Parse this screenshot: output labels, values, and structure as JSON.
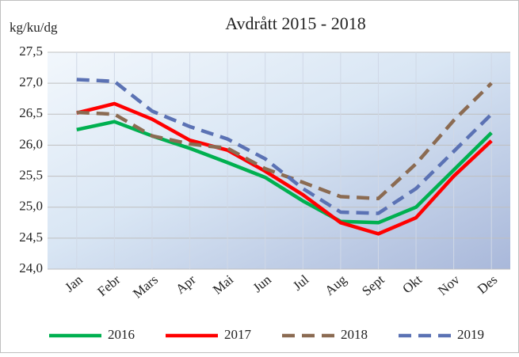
{
  "chart_data": {
    "type": "line",
    "title": "Avdrått 2015 - 2018",
    "y_label": "kg/ku/dg",
    "categories": [
      "Jan",
      "Febr",
      "Mars",
      "Apr",
      "Mai",
      "Jun",
      "Jul",
      "Aug",
      "Sept",
      "Okt",
      "Nov",
      "Des"
    ],
    "series": [
      {
        "name": "2016",
        "color": "#00b050",
        "dashed": false,
        "values": [
          26.25,
          26.38,
          26.15,
          25.95,
          25.72,
          25.48,
          25.1,
          24.77,
          24.75,
          25.0,
          25.6,
          26.2
        ]
      },
      {
        "name": "2017",
        "color": "#ff0000",
        "dashed": false,
        "values": [
          26.52,
          26.67,
          26.42,
          26.08,
          25.92,
          25.58,
          25.2,
          24.75,
          24.57,
          24.83,
          25.5,
          26.07
        ]
      },
      {
        "name": "2018",
        "color": "#8b6b52",
        "dashed": true,
        "values": [
          26.53,
          26.5,
          26.15,
          26.02,
          25.95,
          25.62,
          25.4,
          25.17,
          25.14,
          25.7,
          26.4,
          27.0
        ]
      },
      {
        "name": "2019",
        "color": "#5b72b4",
        "dashed": true,
        "values": [
          27.06,
          27.03,
          26.55,
          26.3,
          26.1,
          25.78,
          25.3,
          24.92,
          24.9,
          25.3,
          25.9,
          26.5
        ]
      }
    ],
    "ylim": [
      24.0,
      27.5
    ],
    "yticks": [
      {
        "value": 24.0,
        "label": "24,0"
      },
      {
        "value": 24.5,
        "label": "24,5"
      },
      {
        "value": 25.0,
        "label": "25,0"
      },
      {
        "value": 25.5,
        "label": "25,5"
      },
      {
        "value": 26.0,
        "label": "26,0"
      },
      {
        "value": 26.5,
        "label": "26,5"
      },
      {
        "value": 27.0,
        "label": "27,0"
      },
      {
        "value": 27.5,
        "label": "27,5"
      }
    ],
    "grid": true,
    "legend": "bottom"
  }
}
